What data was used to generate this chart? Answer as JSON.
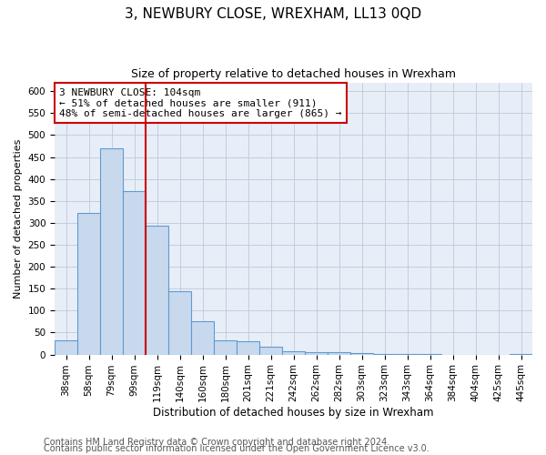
{
  "title": "3, NEWBURY CLOSE, WREXHAM, LL13 0QD",
  "subtitle": "Size of property relative to detached houses in Wrexham",
  "xlabel": "Distribution of detached houses by size in Wrexham",
  "ylabel": "Number of detached properties",
  "bar_labels": [
    "38sqm",
    "58sqm",
    "79sqm",
    "99sqm",
    "119sqm",
    "140sqm",
    "160sqm",
    "180sqm",
    "201sqm",
    "221sqm",
    "242sqm",
    "262sqm",
    "282sqm",
    "303sqm",
    "323sqm",
    "343sqm",
    "364sqm",
    "384sqm",
    "404sqm",
    "425sqm",
    "445sqm"
  ],
  "bar_values": [
    32,
    322,
    470,
    373,
    293,
    145,
    75,
    32,
    30,
    17,
    8,
    5,
    5,
    4,
    2,
    2,
    1,
    0,
    0,
    0,
    2
  ],
  "bar_color": "#c8d9ee",
  "bar_edge_color": "#5b9bd5",
  "vline_color": "#cc0000",
  "annotation_text": "3 NEWBURY CLOSE: 104sqm\n← 51% of detached houses are smaller (911)\n48% of semi-detached houses are larger (865) →",
  "annotation_box_edgecolor": "#cc0000",
  "annotation_fontsize": 8,
  "ylim": [
    0,
    620
  ],
  "yticks": [
    0,
    50,
    100,
    150,
    200,
    250,
    300,
    350,
    400,
    450,
    500,
    550,
    600
  ],
  "footer1": "Contains HM Land Registry data © Crown copyright and database right 2024.",
  "footer2": "Contains public sector information licensed under the Open Government Licence v3.0.",
  "bg_color": "#ffffff",
  "plot_bg_color": "#e8eef7",
  "title_fontsize": 11,
  "subtitle_fontsize": 9,
  "xlabel_fontsize": 8.5,
  "ylabel_fontsize": 8,
  "footer_fontsize": 7,
  "tick_fontsize": 7.5
}
